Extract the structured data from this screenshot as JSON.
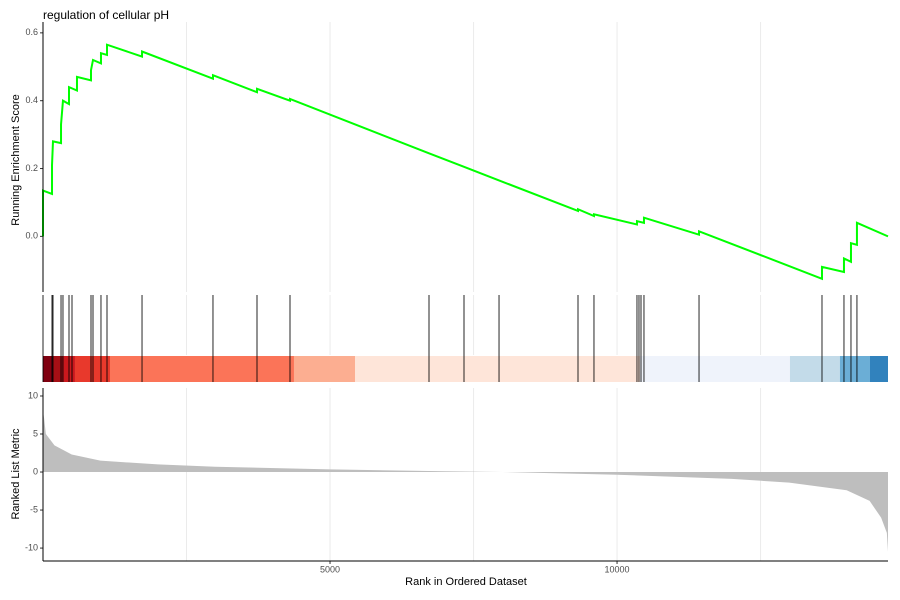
{
  "chart_data": [
    {
      "type": "line",
      "title": "regulation of cellular pH",
      "ylabel": "Running Enrichment Score",
      "color": "#00ff00",
      "x": [
        0,
        0,
        157,
        157,
        174,
        314,
        314,
        348,
        453,
        453,
        592,
        592,
        836,
        836,
        871,
        1010,
        1010,
        1115,
        1115,
        1725,
        1725,
        2961,
        2961,
        3728,
        3728,
        4303,
        4303,
        6724,
        7334,
        7944,
        9320,
        9320,
        9598,
        9598,
        10347,
        10347,
        10469,
        10469,
        11428,
        11428,
        13570,
        13570,
        13953,
        13953,
        14075,
        14075,
        14179,
        14179,
        14720
      ],
      "values": [
        0,
        0.135,
        0.125,
        0.21,
        0.28,
        0.275,
        0.33,
        0.4,
        0.39,
        0.44,
        0.43,
        0.47,
        0.46,
        0.49,
        0.52,
        0.51,
        0.54,
        0.535,
        0.565,
        0.53,
        0.545,
        0.465,
        0.475,
        0.425,
        0.435,
        0.4,
        0.405,
        0.245,
        0.205,
        0.165,
        0.075,
        0.08,
        0.06,
        0.065,
        0.035,
        0.045,
        0.04,
        0.055,
        0.005,
        0.015,
        -0.125,
        -0.09,
        -0.105,
        -0.065,
        -0.075,
        -0.02,
        -0.025,
        0.04,
        0
      ],
      "xlim": [
        0,
        14720
      ],
      "ylim": [
        -0.164,
        0.632
      ],
      "yticks": [
        {
          "value": 0,
          "label": "0.0"
        },
        0.2,
        0.4,
        0.6
      ],
      "x_grid": [
        2500,
        5000,
        7500,
        10000,
        12500
      ]
    },
    {
      "type": "rug",
      "xlim": [
        0,
        14720
      ],
      "x": [
        0,
        157,
        174,
        314,
        348,
        453,
        505,
        836,
        871,
        1010,
        1115,
        1725,
        2961,
        3728,
        4303,
        6724,
        7334,
        7944,
        9320,
        9598,
        10347,
        10382,
        10417,
        10469,
        11428,
        13570,
        13953,
        14075,
        14179
      ],
      "band": {
        "breaks": [
          0,
          157,
          348,
          557,
          1167,
          4372,
          5435,
          10399,
          13012,
          13883,
          14406,
          14720
        ],
        "colors": [
          "#7f0010",
          "#a50f15",
          "#cb181d",
          "#e8392c",
          "#fb7458",
          "#fcae91",
          "#fee5d9",
          "#eff3fb",
          "#c3dbe9",
          "#6baed6",
          "#3182bd"
        ]
      },
      "x_grid": [
        2500,
        5000,
        7500,
        10000,
        12500
      ]
    },
    {
      "type": "area",
      "xlabel": "Rank in Ordered Dataset",
      "ylabel": "Ranked List Metric",
      "color": "#bebebe",
      "x": [
        0,
        20,
        50,
        200,
        500,
        1000,
        2000,
        3000,
        5000,
        7000,
        8000,
        10000,
        12000,
        13000,
        14000,
        14400,
        14600,
        14700,
        14720
      ],
      "values": [
        8,
        7,
        5,
        3.5,
        2.3,
        1.5,
        1,
        0.7,
        0.35,
        0.1,
        0,
        -0.35,
        -0.9,
        -1.4,
        -2.4,
        -3.8,
        -6,
        -8,
        -10.5
      ],
      "xlim": [
        0,
        14720
      ],
      "ylim": [
        -11.7,
        11.05
      ],
      "yticks": [
        -10,
        -5,
        0,
        5,
        10
      ],
      "xticks": [
        5000,
        10000
      ],
      "x_grid": [
        2500,
        5000,
        7500,
        10000,
        12500
      ]
    }
  ]
}
